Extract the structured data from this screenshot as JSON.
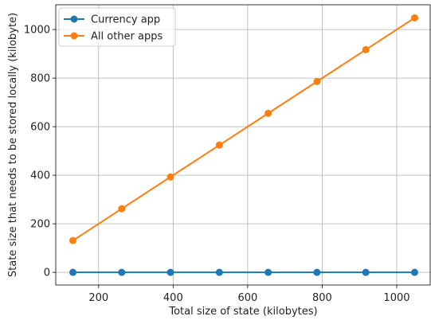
{
  "chart_data": {
    "type": "line",
    "title": "",
    "xlabel": "Total size of state (kilobytes)",
    "ylabel": "State size that needs to be stored locally (kilobyte)",
    "xlim": [
      85,
      1092
    ],
    "ylim": [
      -52,
      1102
    ],
    "x_ticks": [
      200,
      400,
      600,
      800,
      1000
    ],
    "y_ticks": [
      0,
      200,
      400,
      600,
      800,
      1000
    ],
    "grid": true,
    "legend_position": "upper-left",
    "x": [
      131,
      262,
      393,
      524,
      655,
      786,
      917,
      1048
    ],
    "series": [
      {
        "name": "Currency app",
        "color": "#1f77b4",
        "marker": "circle",
        "values": [
          0,
          0,
          0,
          0,
          0,
          0,
          0,
          0
        ]
      },
      {
        "name": "All other apps",
        "color": "#ff7f0e",
        "marker": "circle",
        "values": [
          131,
          262,
          393,
          524,
          655,
          786,
          917,
          1048
        ]
      }
    ]
  }
}
